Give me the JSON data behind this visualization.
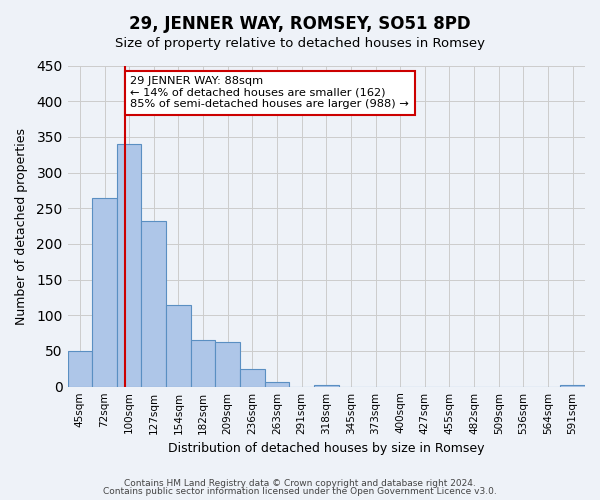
{
  "title": "29, JENNER WAY, ROMSEY, SO51 8PD",
  "subtitle": "Size of property relative to detached houses in Romsey",
  "xlabel": "Distribution of detached houses by size in Romsey",
  "ylabel": "Number of detached properties",
  "bar_color": "#aec6e8",
  "bar_edge_color": "#5a8fc2",
  "categories": [
    "45sqm",
    "72sqm",
    "100sqm",
    "127sqm",
    "154sqm",
    "182sqm",
    "209sqm",
    "236sqm",
    "263sqm",
    "291sqm",
    "318sqm",
    "345sqm",
    "373sqm",
    "400sqm",
    "427sqm",
    "455sqm",
    "482sqm",
    "509sqm",
    "536sqm",
    "564sqm",
    "591sqm"
  ],
  "values": [
    50,
    265,
    340,
    232,
    115,
    65,
    62,
    25,
    7,
    0,
    3,
    0,
    0,
    0,
    0,
    0,
    0,
    0,
    0,
    0,
    3
  ],
  "ylim": [
    0,
    450
  ],
  "yticks": [
    0,
    50,
    100,
    150,
    200,
    250,
    300,
    350,
    400,
    450
  ],
  "property_line_x": 1.85,
  "property_label": "29 JENNER WAY: 88sqm",
  "annotation_line1": "← 14% of detached houses are smaller (162)",
  "annotation_line2": "85% of semi-detached houses are larger (988) →",
  "annotation_box_color": "#ffffff",
  "annotation_box_edge": "#cc0000",
  "red_line_color": "#cc0000",
  "background_color": "#eef2f8",
  "grid_color": "#cccccc",
  "footer1": "Contains HM Land Registry data © Crown copyright and database right 2024.",
  "footer2": "Contains public sector information licensed under the Open Government Licence v3.0."
}
